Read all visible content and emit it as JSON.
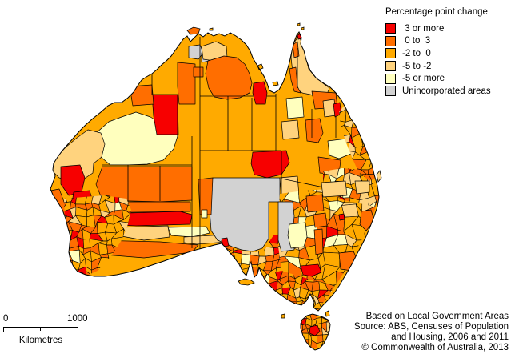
{
  "legend": {
    "title": "Percentage point change",
    "items": [
      {
        "label": " 3 or more",
        "color_key": "red"
      },
      {
        "label": " 0 to  3",
        "color_key": "orange"
      },
      {
        "label": "-2 to  0",
        "color_key": "amber"
      },
      {
        "label": "-5 to -2",
        "color_key": "pale"
      },
      {
        "label": "-5 or more",
        "color_key": "cream"
      },
      {
        "label": "Unincorporated areas",
        "color_key": "grey"
      }
    ]
  },
  "scale_bar": {
    "start_label": "0",
    "end_label": "1000",
    "unit_label": "Kilometres"
  },
  "source_note": {
    "lines": [
      "Based on Local Government Areas",
      "Source: ABS, Censuses of Population",
      "and Housing, 2006 and 2011",
      "© Commonwealth of Australia, 2013"
    ]
  },
  "map": {
    "background": "#ffffff",
    "boundary_color": "#000000",
    "base_color_key": "amber",
    "colors": {
      "red": "#f70000",
      "orange": "#ff6e00",
      "amber": "#ffaa00",
      "pale": "#ffd37e",
      "cream": "#ffffbe",
      "grey": "#d2d2d2"
    },
    "mainland": "374,40 377,47 376,55 380,63 383,75 388,88 396,98 405,104 413,109 420,116 427,125 433,136 438,147 445,157 450,168 455,180 460,192 465,205 468,218 472,232 474,246 472,258 468,270 463,283 458,295 452,307 446,318 441,328 436,337 430,347 424,357 418,366 411,374 404,381 398,388 392,384 393,377 388,367 383,376 377,381 369,379 361,375 352,369 344,363 337,356 331,349 327,341 324,334 322,342 318,346 316,337 314,327 311,334 308,344 304,340 299,330 293,322 287,315 281,308 277,304 268,306 257,309 245,312 232,316 219,321 205,326 190,331 175,336 160,340 146,343 131,345 118,345 107,343 97,339 92,333 88,325 86,315 87,305 88,295 85,285 82,273 78,262 72,252 66,243 63,236 66,228 69,220 66,212 67,204 72,196 78,188 85,180 92,172 99,164 107,156 116,148 126,140 135,132 143,128 152,128 160,122 167,115 172,107 177,100 183,96 190,92 196,87 202,81 208,76 214,70 219,63 224,56 229,49 234,45 238,52 243,47 248,42 254,46 260,41 267,45 274,42 281,45 288,41 295,45 302,50 308,56 313,64 316,72 320,79 325,87 330,95 334,104 337,113 343,116 349,112 354,103 358,92 362,78 365,64 368,52 371,44",
    "tasmania": "378,399 384,394 391,392 398,394 404,396 410,399 413,405 412,413 409,421 405,429 400,435 394,437 388,433 383,427 379,419 376,410 376,404",
    "islands": [
      {
        "c": "orange",
        "p": "234,38 242,34 250,36 248,42 238,43"
      },
      {
        "c": "amber",
        "p": "322,82 327,80 329,85 324,87"
      },
      {
        "c": "amber",
        "p": "341,103 347,102 348,106 342,107"
      },
      {
        "c": "pale",
        "p": "471,218 475,213 477,222 473,227"
      },
      {
        "c": "amber",
        "p": "298,351 306,348 314,350 318,353 310,356 301,355"
      },
      {
        "c": "amber",
        "p": "352,393 356,392 356,397 352,397"
      },
      {
        "c": "amber",
        "p": "407,390 411,388 412,394 408,395"
      },
      {
        "c": "amber",
        "p": "372,30 375,29 375,32 372,32"
      },
      {
        "c": "amber",
        "p": "377,35 380,34 380,37 377,37"
      },
      {
        "c": "amber",
        "p": "262,36 266,35 266,38 262,38"
      }
    ],
    "patches": [
      {
        "c": "cream",
        "p": "118,168 136,152 152,146 170,140 188,146 198,152 220,152 222,170 217,186 204,200 184,205 158,206 138,206 126,196 118,186"
      },
      {
        "c": "pale",
        "p": "64,212 70,196 82,184 95,173 110,162 126,166 131,180 127,196 117,204 116,216 104,224 88,226 74,222"
      },
      {
        "c": "orange",
        "p": "128,208 240,208 240,250 200,252 128,250 120,230"
      },
      {
        "c": "orange",
        "p": "98,252 238,252 238,264 98,266"
      },
      {
        "c": "red",
        "p": "95,268 225,264 240,268 238,280 170,282 96,279"
      },
      {
        "c": "pale",
        "p": "150,284 210,282 212,296 180,300 152,295"
      },
      {
        "c": "cream",
        "p": "210,284 258,283 262,291 240,296 214,294"
      },
      {
        "c": "pale",
        "p": "230,296 282,293 284,302 246,305 230,303"
      },
      {
        "c": "orange",
        "p": "120,300 200,302 248,306 240,315 180,322 130,318 112,310"
      },
      {
        "c": "red",
        "p": "190,118 222,118 223,168 196,168 192,145"
      },
      {
        "c": "orange",
        "p": "162,108 190,106 192,130 166,132"
      },
      {
        "c": "orange",
        "p": "222,78 244,80 244,130 224,130 222,108"
      },
      {
        "c": "red",
        "p": "76,208 100,206 106,222 102,240 86,244 76,230"
      },
      {
        "c": "red",
        "p": "92,240 112,238 118,258 112,272 96,270 90,254"
      },
      {
        "c": "red",
        "p": "112,246 136,244 140,262 130,274 114,270"
      },
      {
        "c": "orange",
        "p": "63,238 74,236 80,252 84,270 78,282 70,262 64,248"
      },
      {
        "c": "grey",
        "p": "236,58 250,56 254,66 248,74 236,72"
      },
      {
        "c": "grey",
        "p": "252,66 262,64 262,76 252,78"
      },
      {
        "c": "pale",
        "p": "252,58 270,52 283,58 284,72 268,76 254,74"
      },
      {
        "c": "orange",
        "p": "242,84 254,84 254,96 242,96"
      },
      {
        "c": "orange",
        "p": "260,76 280,70 296,72 306,80 312,92 315,104 312,116 300,122 284,124 268,121 261,110 257,92"
      },
      {
        "c": "red",
        "p": "317,104 330,102 334,116 332,130 320,130 316,116"
      },
      {
        "c": "red",
        "p": "316,190 358,188 362,203 352,218 334,222 318,218 314,204"
      },
      {
        "c": "grey",
        "p": "266,222 350,222 350,252 336,252 336,298 328,310 316,314 302,312 290,308 282,304 272,300 264,288 262,262 263,238"
      },
      {
        "c": "orange",
        "p": "248,224 266,222 264,268 250,268"
      },
      {
        "c": "cream",
        "p": "252,262 259,262 259,272 252,272"
      },
      {
        "c": "pale",
        "p": "350,222 372,220 374,244 352,246"
      },
      {
        "c": "orange",
        "p": "352,248 382,246 384,270 354,270"
      },
      {
        "c": "cream",
        "p": "356,274 374,272 376,304 358,306"
      },
      {
        "c": "pale",
        "p": "366,56 374,44 380,62 386,86 394,96 404,104 412,110 408,120 398,122 388,118 378,116 370,110 366,90 364,72"
      },
      {
        "c": "orange",
        "p": "362,86 370,84 372,108 376,116 368,114 364,100"
      },
      {
        "c": "orange",
        "p": "366,56 372,52 374,70 368,72"
      },
      {
        "c": "red",
        "p": "372,44 376,42 378,48 373,49"
      },
      {
        "c": "cream",
        "p": "358,123 378,121 380,146 360,148"
      },
      {
        "c": "pale",
        "p": "352,152 372,150 374,172 354,174"
      },
      {
        "c": "orange",
        "p": "390,114 420,116 422,134 394,136"
      },
      {
        "c": "orange",
        "p": "382,150 400,148 404,166 398,178 384,176"
      },
      {
        "c": "pale",
        "p": "404,126 418,124 420,144 406,146"
      },
      {
        "c": "cream",
        "p": "410,176 442,172 444,190 424,198 412,194"
      },
      {
        "c": "red",
        "p": "417,130 425,128 427,142 419,146"
      },
      {
        "c": "orange",
        "p": "398,196 426,200 424,218 400,216"
      },
      {
        "c": "orange",
        "p": "452,186 464,196 458,210 448,202"
      }
    ],
    "lines": [
      "250,46 250,311",
      "250,188 352,188",
      "345,117 345,188",
      "352,188 352,247",
      "352,223 400,233 444,241 468,250",
      "350,334 368,341 388,349 408,354 419,357",
      "128,206 240,206",
      "240,170 240,310",
      "160,206 160,252",
      "200,207 200,251",
      "222,118 222,170",
      "190,60 190,118",
      "285,120 285,188",
      "315,122 315,188",
      "250,120 317,120",
      "334,120 345,120",
      "372,60 372,110",
      "390,136 390,172",
      "420,146 420,172"
    ],
    "mesh_regions": [
      {
        "clip": "80,248 130,244 158,248 164,262 160,280 152,300 140,318 122,338 104,346 93,339 87,322 84,300 81,274",
        "cell": 9,
        "seed": 11,
        "weights": {
          "amber": 3.5,
          "orange": 3,
          "red": 1.2,
          "pale": 0.8,
          "cream": 0.4
        }
      },
      {
        "clip": "276,300 292,310 306,314 320,315 332,311 338,300 342,294 352,292 356,334 344,354 332,352 322,344 316,348 312,330 306,344 300,336 292,322 282,310",
        "cell": 9,
        "seed": 22,
        "weights": {
          "amber": 3.5,
          "orange": 2.6,
          "pale": 1,
          "red": 0.45,
          "cream": 0.3
        }
      },
      {
        "clip": "350,242 380,238 410,236 440,239 462,242 472,248 468,264 460,284 450,304 440,322 430,340 420,356 402,352 384,348 366,343 352,336 348,308 348,270",
        "cell": 12,
        "seed": 33,
        "weights": {
          "amber": 4.5,
          "orange": 2.2,
          "pale": 1.1,
          "cream": 0.5,
          "red": 0.3
        }
      },
      {
        "clip": "336,342 352,338 372,344 392,350 410,354 418,358 412,368 404,378 397,388 391,383 393,377 388,367 383,376 376,382 366,378 354,371 344,362 336,354",
        "cell": 8,
        "seed": 44,
        "weights": {
          "amber": 3.2,
          "orange": 3,
          "red": 0.7,
          "pale": 0.5
        }
      },
      {
        "clip": "404,214 428,210 450,212 464,220 473,234 474,248 469,258 450,254 430,250 414,242 404,230",
        "cell": 9,
        "seed": 55,
        "weights": {
          "amber": 3.5,
          "pale": 1.8,
          "orange": 2.4,
          "red": 0.35,
          "cream": 0.5
        }
      },
      {
        "clip": "376,404 382,395 392,391 402,395 411,399 413,407 410,420 404,431 396,437 388,433 381,425 377,414",
        "cell": 7,
        "seed": 66,
        "weights": {
          "amber": 3,
          "orange": 3,
          "red": 0.4,
          "pale": 0.6
        }
      },
      {
        "clip": "432,130 442,148 452,170 462,196 470,222 462,226 448,214 440,196 432,176 426,156 424,140",
        "cell": 10,
        "seed": 77,
        "weights": {
          "amber": 3,
          "pale": 2,
          "orange": 2.5,
          "red": 0.4
        }
      }
    ],
    "over_patches": [
      {
        "c": "grey",
        "p": "348,252 366,252 368,270 366,290 368,312 352,314 348,300"
      },
      {
        "c": "cream",
        "p": "362,280 382,278 384,296 380,308 364,310 360,294"
      },
      {
        "c": "pale",
        "p": "402,228 432,226 434,244 404,246"
      },
      {
        "c": "pale",
        "p": "444,226 462,226 462,240 446,242"
      },
      {
        "c": "orange",
        "p": "383,245 403,243 405,263 385,265"
      },
      {
        "c": "orange",
        "p": "392,268 407,266 409,282 394,284"
      },
      {
        "c": "orange",
        "p": "393,287 403,286 404,316 395,318"
      },
      {
        "c": "orange",
        "p": "424,316 442,314 448,326 440,338 426,336"
      },
      {
        "c": "red",
        "p": "424,268 430,267 431,274 425,275"
      },
      {
        "c": "red",
        "p": "376,332 398,330 402,340 390,345 379,343"
      },
      {
        "c": "red",
        "p": "277,298 284,297 286,307 279,308"
      },
      {
        "c": "red",
        "p": "388,408 397,406 400,414 394,419 387,416"
      },
      {
        "c": "orange",
        "p": "452,264 464,262 468,276 458,288 450,280"
      }
    ]
  }
}
